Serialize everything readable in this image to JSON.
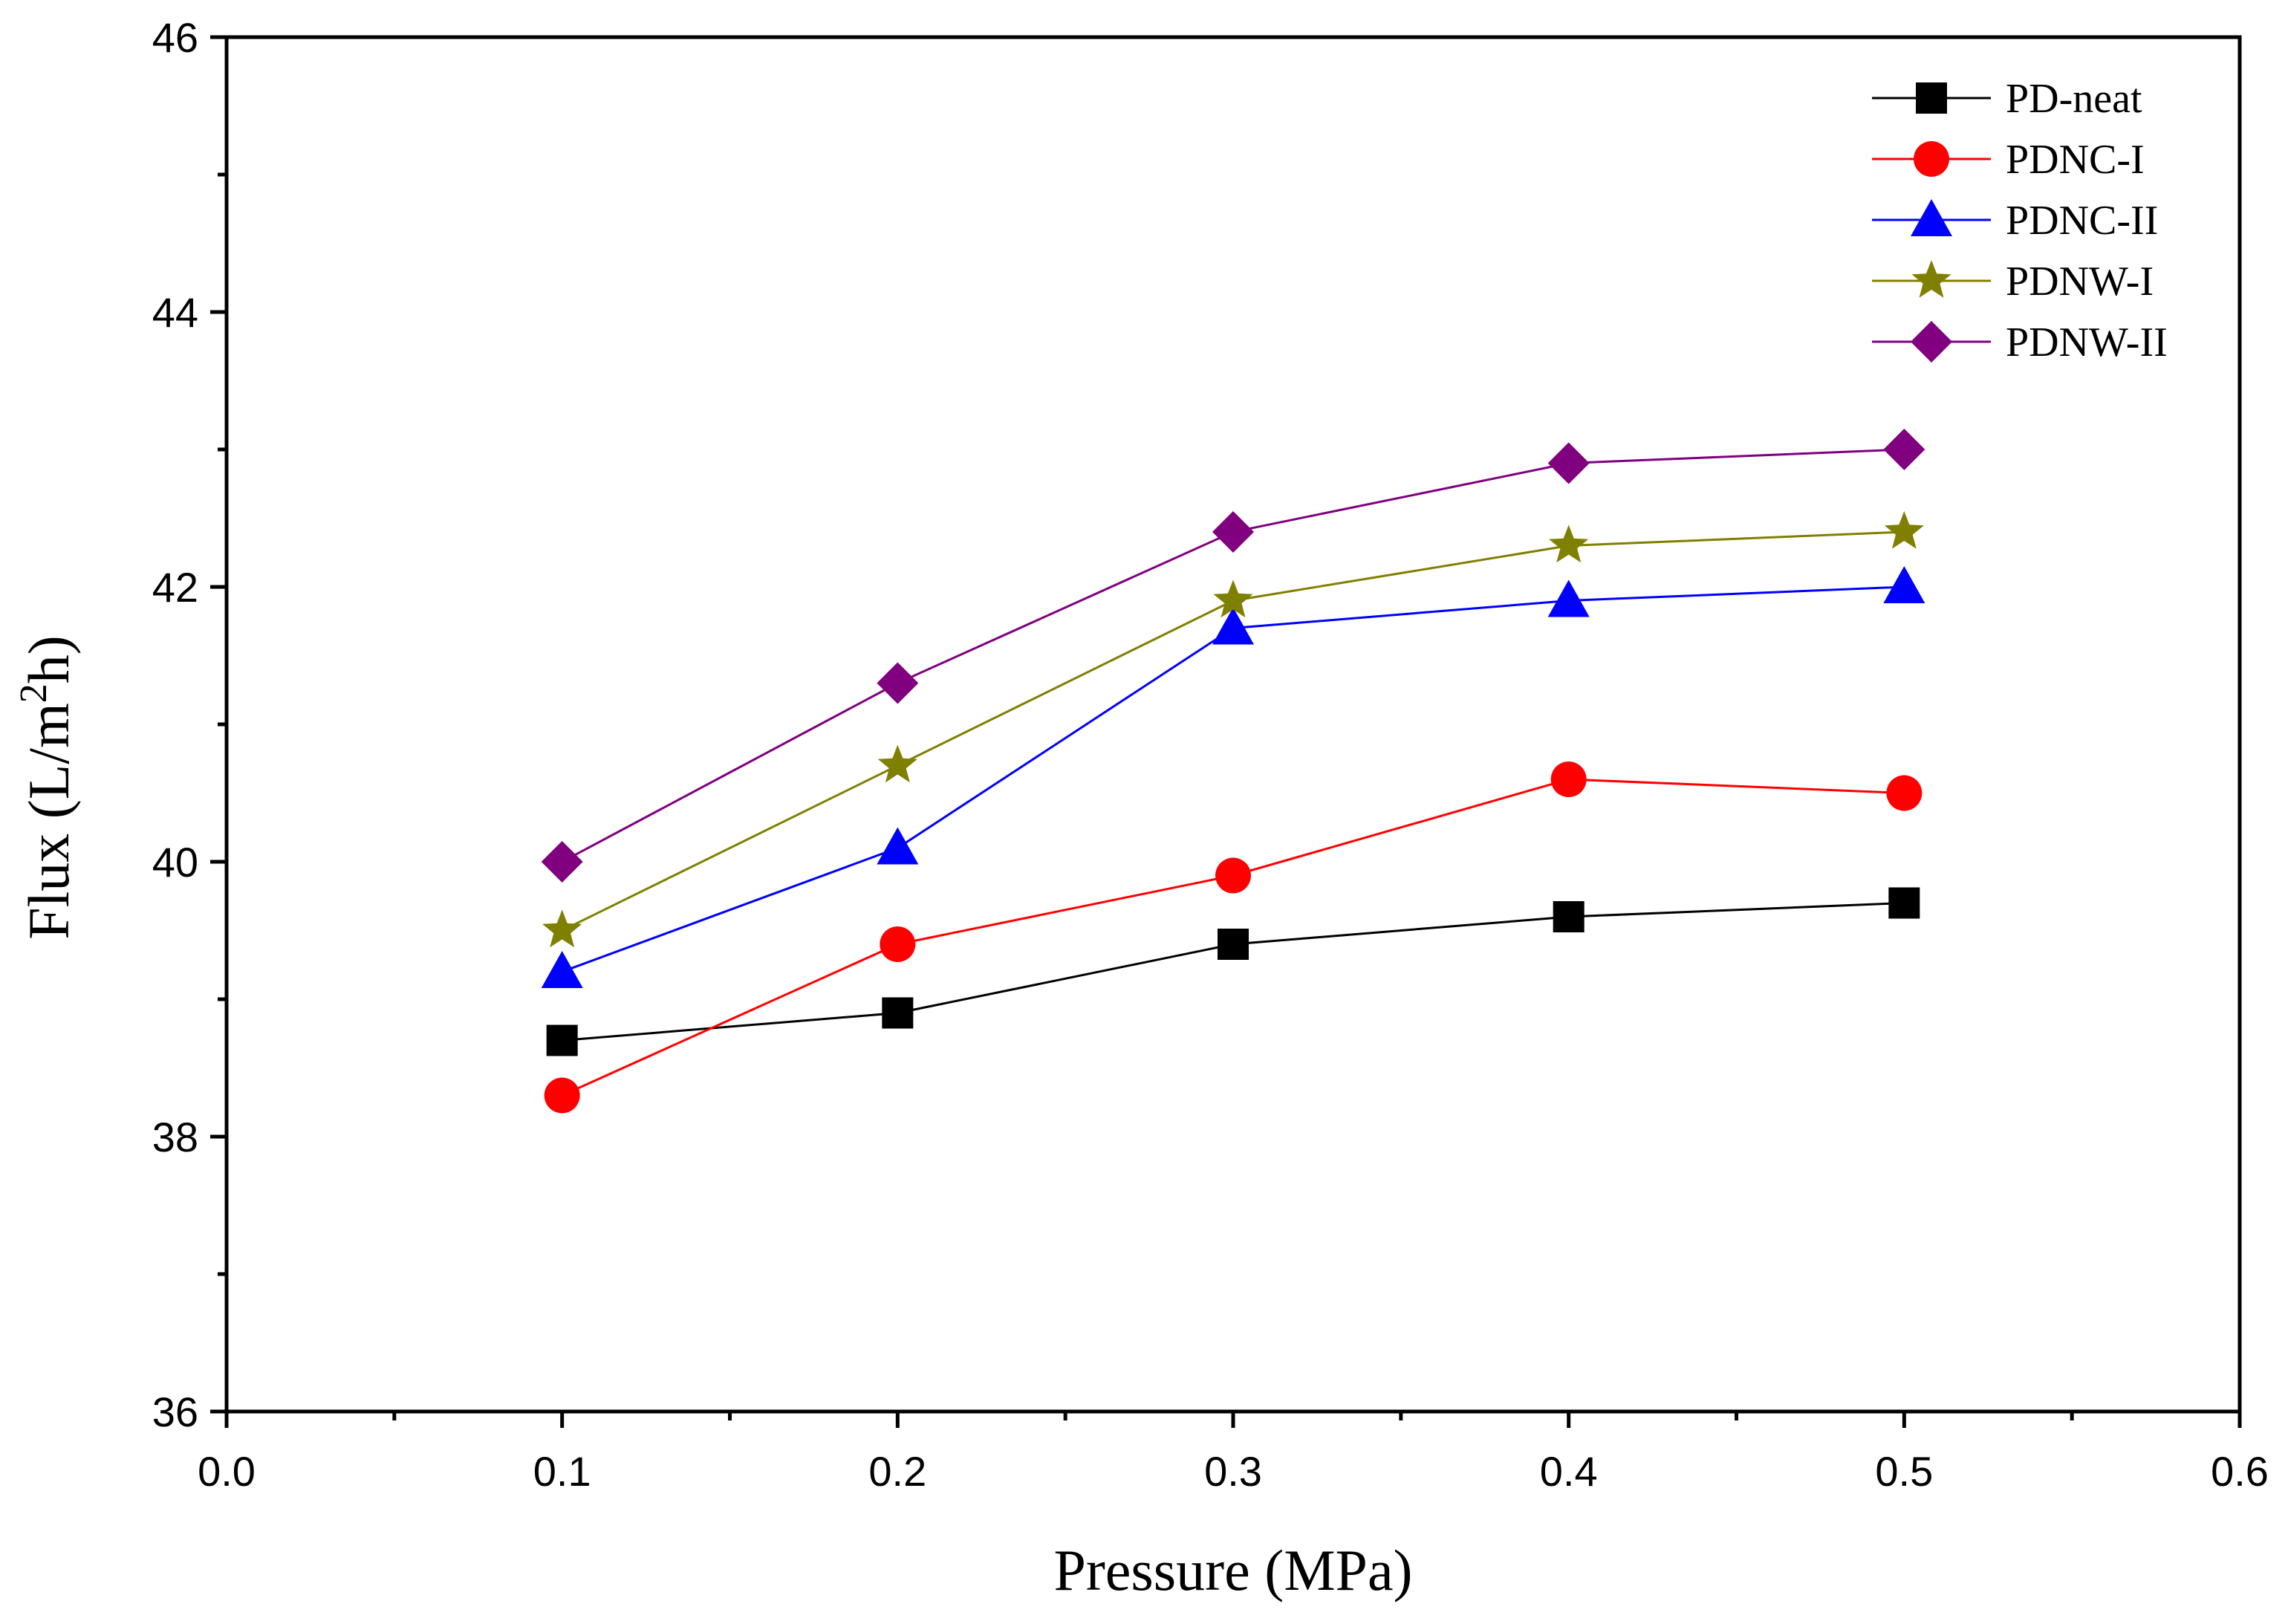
{
  "chart_data": {
    "type": "line",
    "title": "",
    "xlabel": "Pressure (MPa)",
    "ylabel": "Flux (L/m2h)",
    "xlim": [
      0.0,
      0.6
    ],
    "ylim": [
      36,
      46
    ],
    "xticks": [
      0.0,
      0.1,
      0.2,
      0.3,
      0.4,
      0.5,
      0.6
    ],
    "xtick_labels": [
      "0.0",
      "0.1",
      "0.2",
      "0.3",
      "0.4",
      "0.5",
      "0.6"
    ],
    "yticks": [
      36,
      38,
      40,
      42,
      44,
      46
    ],
    "ytick_labels": [
      "36",
      "38",
      "40",
      "42",
      "44",
      "46"
    ],
    "grid": false,
    "legend_position": "top-right",
    "x": [
      0.1,
      0.2,
      0.3,
      0.4,
      0.5
    ],
    "series": [
      {
        "name": "PD-neat",
        "color": "#000000",
        "marker": "square",
        "values": [
          38.7,
          38.9,
          39.4,
          39.6,
          39.7
        ]
      },
      {
        "name": "PDNC-I",
        "color": "#ff0000",
        "marker": "circle",
        "values": [
          38.3,
          39.4,
          39.9,
          40.6,
          40.5
        ]
      },
      {
        "name": "PDNC-II",
        "color": "#0000ff",
        "marker": "triangle",
        "values": [
          39.2,
          40.1,
          41.7,
          41.9,
          42.0
        ]
      },
      {
        "name": "PDNW-I",
        "color": "#808000",
        "marker": "star",
        "values": [
          39.5,
          40.7,
          41.9,
          42.3,
          42.4
        ]
      },
      {
        "name": "PDNW-II",
        "color": "#800080",
        "marker": "diamond",
        "values": [
          40.0,
          41.3,
          42.4,
          42.9,
          43.0
        ]
      }
    ]
  }
}
